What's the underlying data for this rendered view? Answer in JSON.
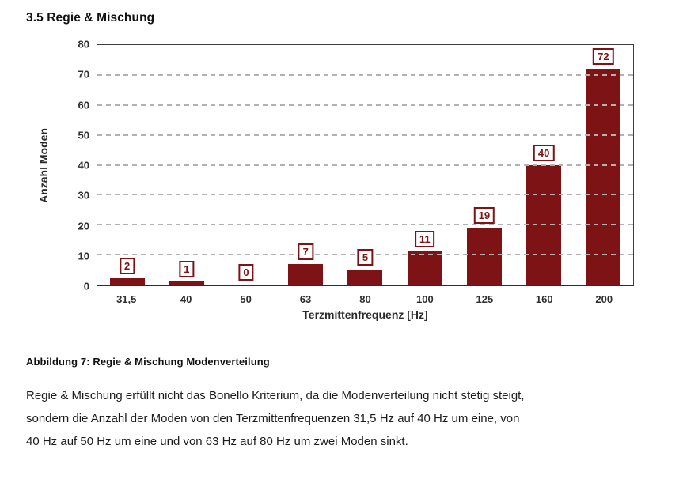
{
  "document": {
    "heading": "3.5 Regie & Mischung",
    "caption": "Abbildung 7: Regie & Mischung Modenverteilung",
    "body_lines": [
      "Regie & Mischung erfüllt nicht das Bonello Kriterium, da die Modenverteilung nicht stetig steigt,",
      "sondern die Anzahl der Moden von den Terzmittenfrequenzen 31,5 Hz auf 40 Hz um eine, von",
      "40 Hz auf 50 Hz um eine und von 63 Hz auf 80 Hz um zwei Moden sinkt."
    ]
  },
  "chart_data": {
    "type": "bar",
    "categories": [
      "31,5",
      "40",
      "50",
      "63",
      "80",
      "100",
      "125",
      "160",
      "200"
    ],
    "values": [
      2,
      1,
      0,
      7,
      5,
      11,
      19,
      40,
      72
    ],
    "data_labels": [
      "2",
      "1",
      "0",
      "7",
      "5",
      "11",
      "19",
      "40",
      "72"
    ],
    "title": "",
    "xlabel": "Terzmittenfrequenz [Hz]",
    "ylabel": "Anzahl Moden",
    "ylim": [
      0,
      80
    ],
    "yticks": [
      0,
      10,
      20,
      30,
      40,
      50,
      60,
      70,
      80
    ],
    "grid": "horizontal-dashed",
    "legend_position": "none",
    "colors": {
      "bar": "#7d1315",
      "label_border": "#7d1315",
      "label_text": "#7d1315",
      "grid": "#b2b2b2",
      "axis": "#3d3d3d",
      "tick_text": "#2e2e2e"
    }
  }
}
